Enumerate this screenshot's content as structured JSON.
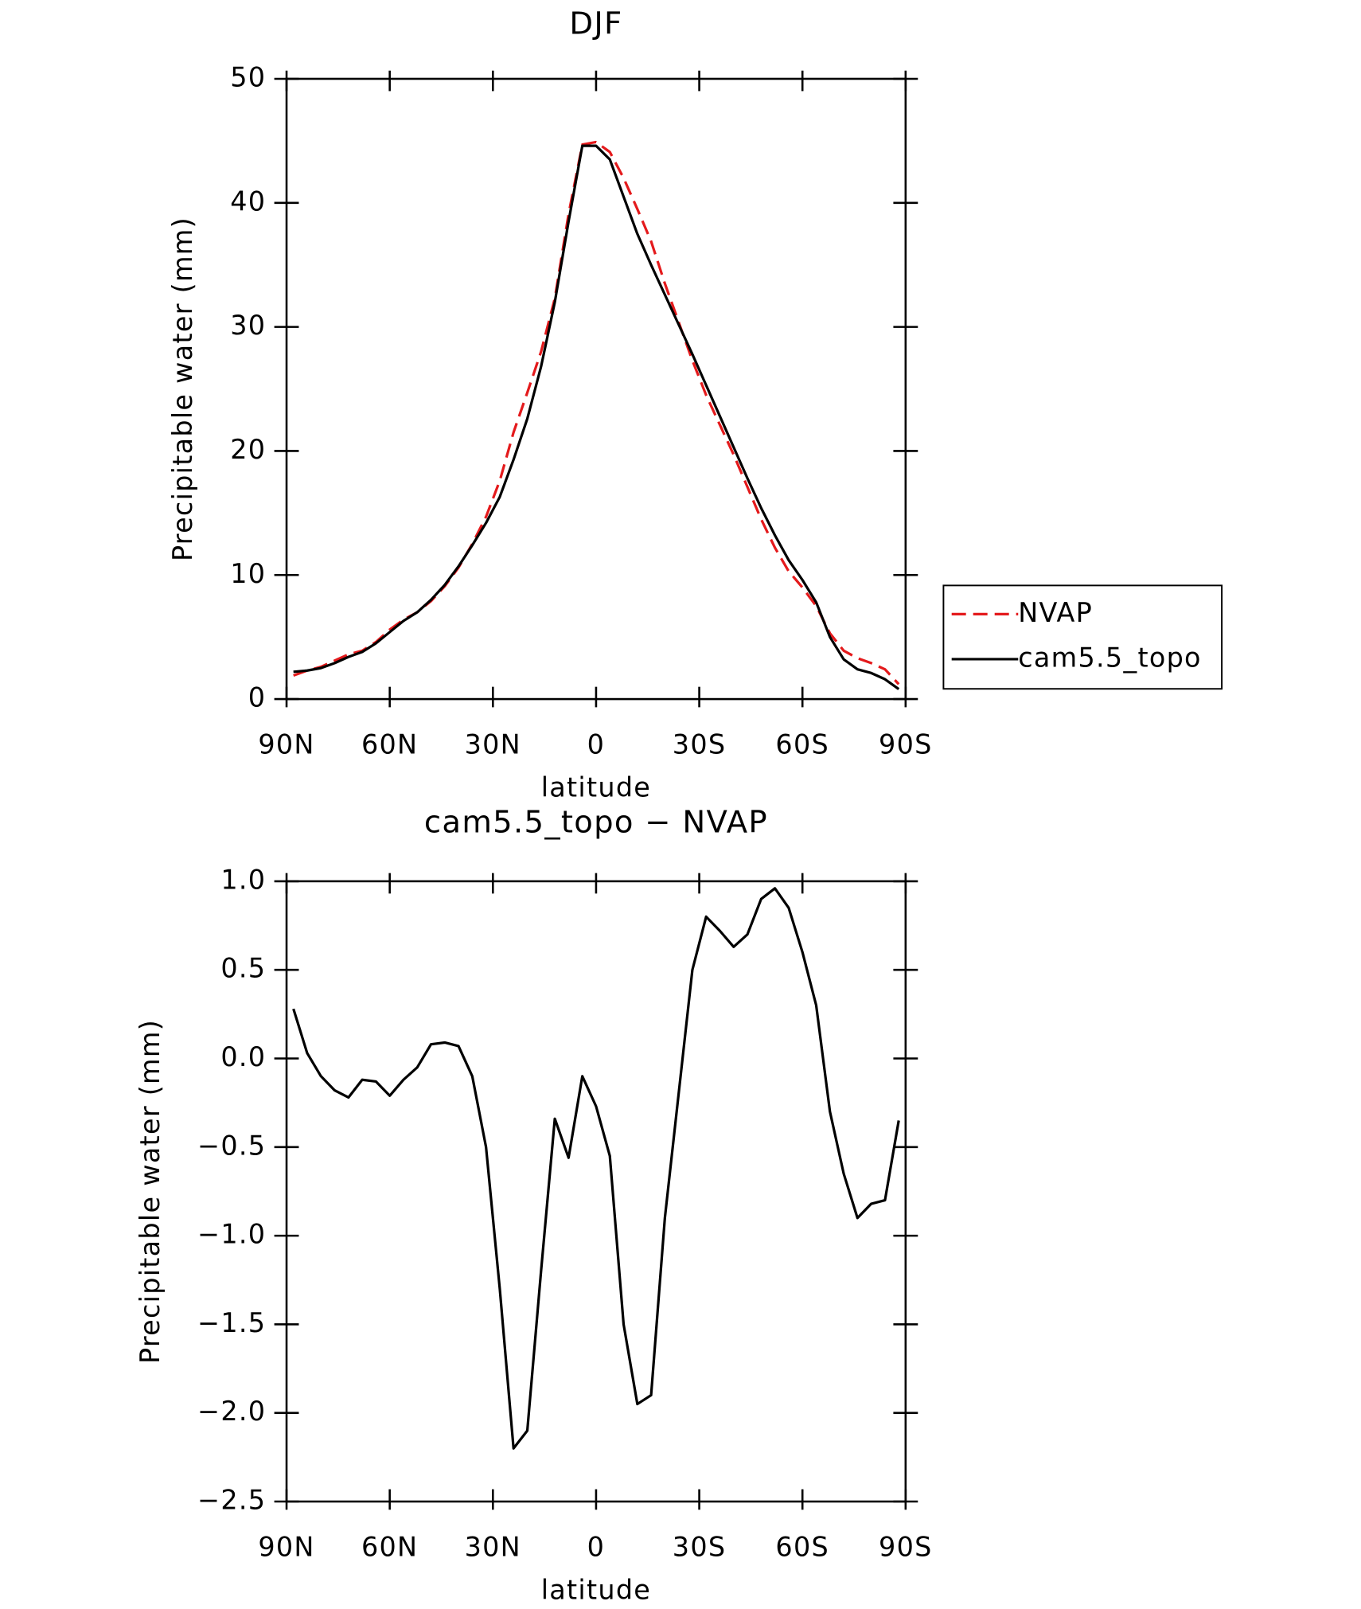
{
  "chart_data": [
    {
      "type": "line",
      "title": "DJF",
      "x_label": "latitude",
      "y_label": "Precipitable water (mm)",
      "x": [
        88,
        84,
        80,
        76,
        72,
        68,
        64,
        60,
        56,
        52,
        48,
        44,
        40,
        36,
        32,
        28,
        24,
        20,
        16,
        12,
        8,
        4,
        0,
        -4,
        -8,
        -12,
        -16,
        -20,
        -24,
        -28,
        -32,
        -36,
        -40,
        -44,
        -48,
        -52,
        -56,
        -60,
        -64,
        -68,
        -72,
        -76,
        -80,
        -84,
        -88
      ],
      "series": [
        {
          "name": "NVAP",
          "color": "#e41a1c",
          "dashed": true,
          "values": [
            1.9,
            2.3,
            2.6,
            3.1,
            3.6,
            3.9,
            4.6,
            5.6,
            6.4,
            7.0,
            7.9,
            9.1,
            10.6,
            12.5,
            14.7,
            17.6,
            21.5,
            24.7,
            28.0,
            32.3,
            39.1,
            44.7,
            44.9,
            44.1,
            42.0,
            39.5,
            36.9,
            33.5,
            30.4,
            27.3,
            24.5,
            22.1,
            19.7,
            17.1,
            14.5,
            12.2,
            10.3,
            9.0,
            7.5,
            5.3,
            3.9,
            3.3,
            2.9,
            2.4,
            1.2
          ]
        },
        {
          "name": "cam5.5_topo",
          "color": "#000000",
          "dashed": false,
          "values": [
            2.2,
            2.3,
            2.5,
            2.9,
            3.4,
            3.8,
            4.5,
            5.4,
            6.3,
            7.0,
            8.0,
            9.2,
            10.7,
            12.4,
            14.2,
            16.3,
            19.3,
            22.6,
            26.8,
            32.0,
            38.5,
            44.6,
            44.6,
            43.5,
            40.5,
            37.5,
            35.0,
            32.6,
            30.2,
            27.8,
            25.3,
            22.8,
            20.3,
            17.8,
            15.4,
            13.2,
            11.2,
            9.6,
            7.8,
            5.0,
            3.2,
            2.4,
            2.1,
            1.6,
            0.8
          ]
        }
      ],
      "xlim": [
        90,
        -90
      ],
      "xticks": [
        {
          "value": 90,
          "label": "90N"
        },
        {
          "value": 60,
          "label": "60N"
        },
        {
          "value": 30,
          "label": "30N"
        },
        0,
        {
          "value": -30,
          "label": "30S"
        },
        {
          "value": -60,
          "label": "60S"
        },
        {
          "value": -90,
          "label": "90S"
        }
      ],
      "ylim": [
        0,
        50
      ],
      "yticks": [
        0,
        10,
        20,
        30,
        40,
        50
      ],
      "legend": "outside-right"
    },
    {
      "type": "line",
      "title": "cam5.5_topo − NVAP",
      "x_label": "latitude",
      "y_label": "Precipitable water (mm)",
      "x": [
        88,
        84,
        80,
        76,
        72,
        68,
        64,
        60,
        56,
        52,
        48,
        44,
        40,
        36,
        32,
        28,
        24,
        20,
        16,
        12,
        8,
        4,
        0,
        -4,
        -8,
        -12,
        -16,
        -20,
        -24,
        -28,
        -32,
        -36,
        -40,
        -44,
        -48,
        -52,
        -56,
        -60,
        -64,
        -68,
        -72,
        -76,
        -80,
        -84,
        -88
      ],
      "series": [
        {
          "color": "#000000",
          "dashed": false,
          "values": [
            0.28,
            0.03,
            -0.1,
            -0.18,
            -0.22,
            -0.12,
            -0.13,
            -0.21,
            -0.12,
            -0.05,
            0.08,
            0.09,
            0.07,
            -0.1,
            -0.5,
            -1.3,
            -2.2,
            -2.1,
            -1.2,
            -0.34,
            -0.56,
            -0.1,
            -0.27,
            -0.55,
            -1.5,
            -1.95,
            -1.9,
            -0.9,
            -0.2,
            0.5,
            0.8,
            0.72,
            0.63,
            0.7,
            0.9,
            0.96,
            0.85,
            0.6,
            0.3,
            -0.3,
            -0.65,
            -0.9,
            -0.82,
            -0.8,
            -0.35
          ]
        }
      ],
      "xlim": [
        90,
        -90
      ],
      "xticks": [
        {
          "value": 90,
          "label": "90N"
        },
        {
          "value": 60,
          "label": "60N"
        },
        {
          "value": 30,
          "label": "30N"
        },
        0,
        {
          "value": -30,
          "label": "30S"
        },
        {
          "value": -60,
          "label": "60S"
        },
        {
          "value": -90,
          "label": "90S"
        }
      ],
      "ylim": [
        -2.5,
        1.0
      ],
      "yticks": [
        {
          "value": -2.5,
          "label": "−2.5"
        },
        {
          "value": -2,
          "label": "−2.0"
        },
        {
          "value": -1.5,
          "label": "−1.5"
        },
        {
          "value": -1,
          "label": "−1.0"
        },
        {
          "value": -0.5,
          "label": "−0.5"
        },
        {
          "value": 0,
          "label": "0.0"
        },
        0.5,
        {
          "value": 1,
          "label": "1.0"
        }
      ]
    }
  ]
}
